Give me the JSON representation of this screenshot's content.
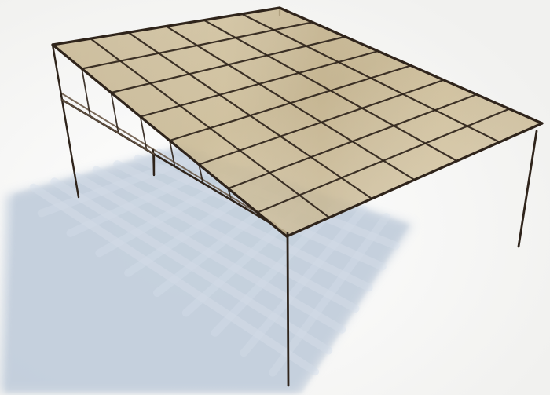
{
  "image": {
    "subject": "canopy-render",
    "colors": {
      "background": "#ffffff",
      "floor_shadow": "#b9c6d6",
      "roof_fill": "#c8b792",
      "roof_glow": "#efe4c7",
      "frame": "#2f241b",
      "frame_light": "#6c5a49"
    }
  }
}
